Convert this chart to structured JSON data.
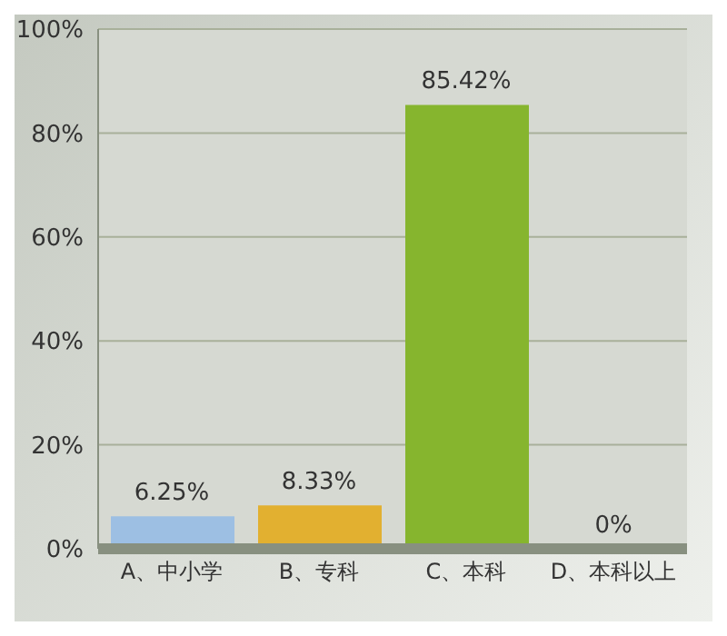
{
  "chart_data": {
    "type": "bar",
    "categories": [
      "A、中小学",
      "B、专科",
      "C、本科",
      "D、本科以上"
    ],
    "values": [
      6.25,
      8.33,
      85.42,
      0
    ],
    "colors": [
      "#9dbfe3",
      "#e2b030",
      "#86b52e",
      "#f0957a"
    ],
    "value_labels": [
      "6.25%",
      "8.33%",
      "85.42%",
      "0%"
    ],
    "ylim": [
      0,
      100
    ],
    "yticks": [
      {
        "value": 0,
        "label": "0%"
      },
      {
        "value": 20,
        "label": "20%"
      },
      {
        "value": 40,
        "label": "40%"
      },
      {
        "value": 60,
        "label": "60%"
      },
      {
        "value": 80,
        "label": "80%"
      },
      {
        "value": 100,
        "label": "100%"
      }
    ],
    "grid": "y"
  }
}
